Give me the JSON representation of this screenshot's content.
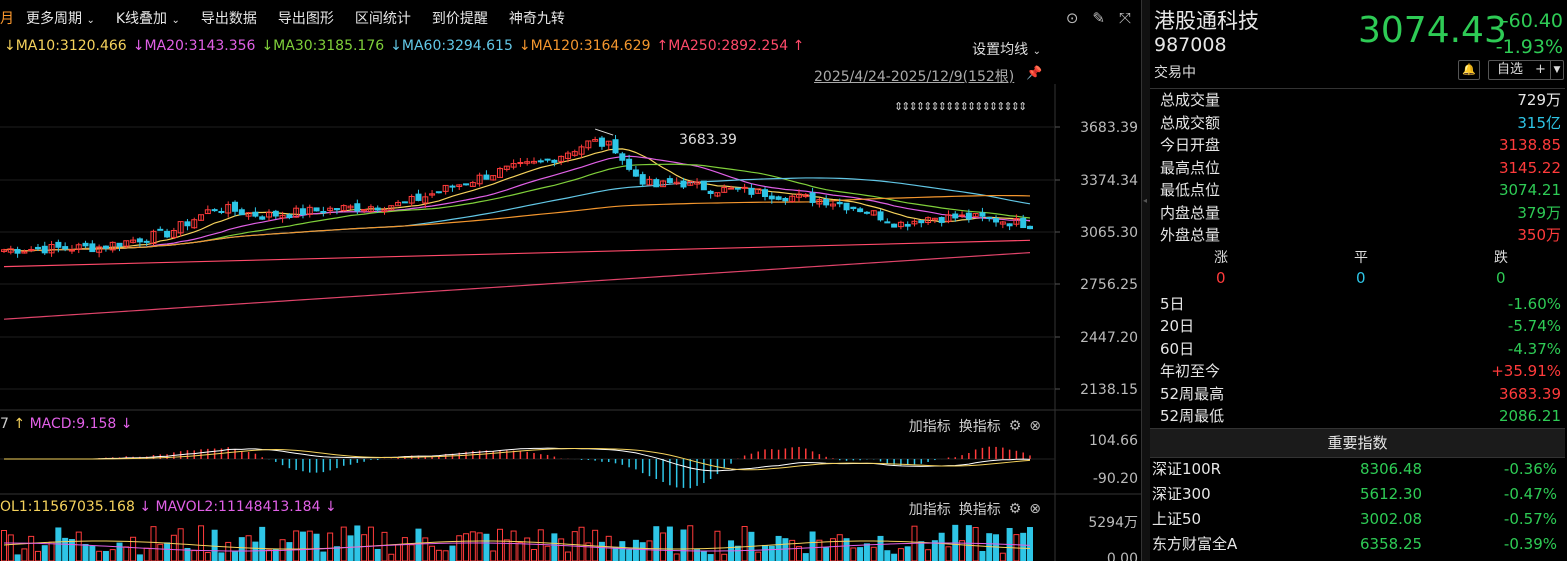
{
  "toolbar": {
    "period_label": "月",
    "items": [
      "更多周期",
      "K线叠加",
      "导出数据",
      "导出图形",
      "区间统计",
      "到价提醒",
      "神奇九转"
    ]
  },
  "ma_lines": [
    {
      "label": "↓MA10:3120.466",
      "color": "#f5d25c"
    },
    {
      "label": "↓MA20:3143.356",
      "color": "#e060e6"
    },
    {
      "label": "↓MA30:3185.176",
      "color": "#7fcf3a"
    },
    {
      "label": "↓MA60:3294.615",
      "color": "#62c7e6"
    },
    {
      "label": "↓MA120:3164.629",
      "color": "#f3962e"
    },
    {
      "label": "↑MA250:2892.254 ↑",
      "color": "#ff4a6a"
    }
  ],
  "ma_settings_label": "设置均线",
  "date_range": "2025/4/24-2025/12/9(152根)",
  "price_axis": [
    "3683.39",
    "3374.34",
    "3065.30",
    "2756.25",
    "2447.20",
    "2138.15"
  ],
  "max_marker": "3683.39",
  "macd_header": {
    "prefix": "7",
    "arrow_up": "↑",
    "label": "MACD:9.158",
    "arrow_down": "↓"
  },
  "macd_axis": [
    "104.66",
    "-90.20"
  ],
  "vol_header": {
    "label1": "OL1:11567035.168",
    "arrow1": "↓",
    "label2": "MAVOL2:11148413.184",
    "arrow2": "↓"
  },
  "vol_axis": [
    "5294万",
    "0.00"
  ],
  "sub_tools": {
    "add": "加指标",
    "switch": "换指标"
  },
  "quote": {
    "name": "港股通科技",
    "code": "987008",
    "price": "3074.43",
    "change": "-60.40",
    "change_pct": "-1.93%",
    "status": "交易中",
    "watch_label": "自选",
    "watch_plus": "+"
  },
  "stats": [
    {
      "k": "总成交量",
      "v": "729万",
      "cls": "white"
    },
    {
      "k": "总成交额",
      "v": "315亿",
      "cls": "cyan"
    },
    {
      "k": "今日开盘",
      "v": "3138.85",
      "cls": "red"
    },
    {
      "k": "最高点位",
      "v": "3145.22",
      "cls": "red"
    },
    {
      "k": "最低点位",
      "v": "3074.21",
      "cls": "green"
    },
    {
      "k": "内盘总量",
      "v": "379万",
      "cls": "green"
    },
    {
      "k": "外盘总量",
      "v": "350万",
      "cls": "red"
    }
  ],
  "counts": {
    "up_label": "涨",
    "flat_label": "平",
    "down_label": "跌",
    "up": "0",
    "flat": "0",
    "down": "0"
  },
  "perf": [
    {
      "k": "5日",
      "v": "-1.60%",
      "cls": "green"
    },
    {
      "k": "20日",
      "v": "-5.74%",
      "cls": "green"
    },
    {
      "k": "60日",
      "v": "-4.37%",
      "cls": "green"
    },
    {
      "k": "年初至今",
      "v": "+35.91%",
      "cls": "red"
    },
    {
      "k": "52周最高",
      "v": "3683.39",
      "cls": "red"
    },
    {
      "k": "52周最低",
      "v": "2086.21",
      "cls": "green"
    }
  ],
  "index_header": "重要指数",
  "indices": [
    {
      "name": "深证100R",
      "price": "8306.48",
      "chg": "-0.36%"
    },
    {
      "name": "深证300",
      "price": "5612.30",
      "chg": "-0.47%"
    },
    {
      "name": "上证50",
      "price": "3002.08",
      "chg": "-0.57%"
    },
    {
      "name": "东方财富全A",
      "price": "6358.25",
      "chg": "-0.39%"
    }
  ],
  "colors": {
    "up": "#ff3b3b",
    "down": "#2ecb55",
    "cyan": "#2ec5e6"
  }
}
